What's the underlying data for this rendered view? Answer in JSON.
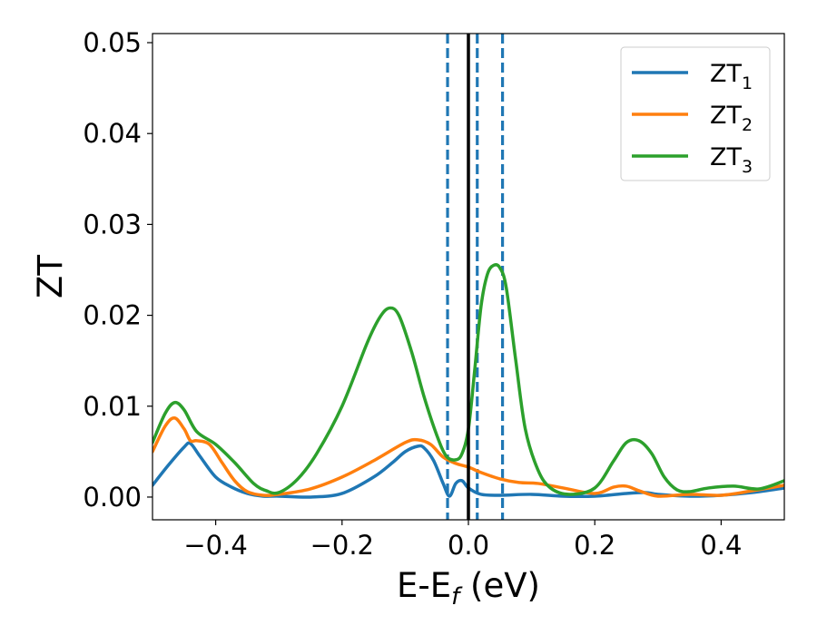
{
  "chart_data": {
    "type": "line",
    "xlabel_main": "E-E",
    "xlabel_sub": "f",
    "xlabel_unit": " (eV)",
    "ylabel": "ZT",
    "xlim": [
      -0.5,
      0.5
    ],
    "ylim": [
      -0.0025,
      0.051
    ],
    "xticks": [
      -0.4,
      -0.2,
      0.0,
      0.2,
      0.4
    ],
    "xtick_labels": [
      "−0.4",
      "−0.2",
      "0.0",
      "0.2",
      "0.4"
    ],
    "yticks": [
      0.0,
      0.01,
      0.02,
      0.03,
      0.04,
      0.05
    ],
    "ytick_labels": [
      "0.00",
      "0.01",
      "0.02",
      "0.03",
      "0.04",
      "0.05"
    ],
    "legend_position": "top-right",
    "grid": false,
    "vlines": [
      {
        "x": -0.033,
        "style": "dashed",
        "color": "#1f77b4"
      },
      {
        "x": 0.0,
        "style": "solid",
        "color": "#000000"
      },
      {
        "x": 0.014,
        "style": "dashed",
        "color": "#1f77b4"
      },
      {
        "x": 0.054,
        "style": "dashed",
        "color": "#1f77b4"
      }
    ],
    "series": [
      {
        "name": "ZT",
        "name_sub": "1",
        "color": "#1f77b4",
        "x": [
          -0.5,
          -0.475,
          -0.45,
          -0.44,
          -0.425,
          -0.4,
          -0.375,
          -0.35,
          -0.325,
          -0.3,
          -0.25,
          -0.2,
          -0.15,
          -0.12,
          -0.1,
          -0.08,
          -0.07,
          -0.055,
          -0.04,
          -0.03,
          -0.02,
          -0.01,
          0.0,
          0.02,
          0.05,
          0.1,
          0.15,
          0.2,
          0.25,
          0.28,
          0.3,
          0.35,
          0.4,
          0.45,
          0.5
        ],
        "y": [
          0.0013,
          0.0035,
          0.0055,
          0.0059,
          0.0045,
          0.0022,
          0.0011,
          0.0004,
          0.0001,
          0.0001,
          0.0,
          0.0004,
          0.0022,
          0.0038,
          0.005,
          0.0056,
          0.0054,
          0.004,
          0.0015,
          0.0001,
          0.0015,
          0.0018,
          0.001,
          0.0003,
          0.0002,
          0.0003,
          0.0001,
          0.0001,
          0.0004,
          0.0005,
          0.0003,
          0.0001,
          0.0002,
          0.0005,
          0.001
        ]
      },
      {
        "name": "ZT",
        "name_sub": "2",
        "color": "#ff7f0e",
        "x": [
          -0.5,
          -0.48,
          -0.465,
          -0.45,
          -0.44,
          -0.43,
          -0.41,
          -0.39,
          -0.37,
          -0.35,
          -0.325,
          -0.3,
          -0.25,
          -0.2,
          -0.15,
          -0.1,
          -0.08,
          -0.06,
          -0.04,
          -0.02,
          0.0,
          0.02,
          0.05,
          0.08,
          0.11,
          0.15,
          0.2,
          0.23,
          0.25,
          0.27,
          0.3,
          0.35,
          0.4,
          0.45,
          0.5
        ],
        "y": [
          0.005,
          0.0078,
          0.0087,
          0.0075,
          0.0062,
          0.0062,
          0.0058,
          0.0038,
          0.0018,
          0.0006,
          0.0002,
          0.0003,
          0.0009,
          0.0022,
          0.004,
          0.006,
          0.0063,
          0.0058,
          0.0044,
          0.0037,
          0.0033,
          0.0027,
          0.002,
          0.0016,
          0.0015,
          0.001,
          0.0004,
          0.0011,
          0.0012,
          0.0007,
          0.0001,
          0.0003,
          0.0002,
          0.0007,
          0.0013
        ]
      },
      {
        "name": "ZT",
        "name_sub": "3",
        "color": "#2ca02c",
        "x": [
          -0.5,
          -0.48,
          -0.465,
          -0.45,
          -0.43,
          -0.4,
          -0.37,
          -0.34,
          -0.32,
          -0.3,
          -0.27,
          -0.24,
          -0.2,
          -0.16,
          -0.14,
          -0.125,
          -0.11,
          -0.09,
          -0.07,
          -0.05,
          -0.035,
          -0.02,
          -0.01,
          0.0,
          0.01,
          0.02,
          0.03,
          0.04,
          0.05,
          0.06,
          0.075,
          0.09,
          0.11,
          0.13,
          0.16,
          0.2,
          0.23,
          0.25,
          0.27,
          0.29,
          0.31,
          0.33,
          0.35,
          0.38,
          0.42,
          0.46,
          0.5
        ],
        "y": [
          0.006,
          0.0092,
          0.0104,
          0.0096,
          0.0072,
          0.0058,
          0.0038,
          0.0015,
          0.0007,
          0.0005,
          0.002,
          0.0048,
          0.01,
          0.017,
          0.0198,
          0.0208,
          0.02,
          0.016,
          0.011,
          0.0068,
          0.0045,
          0.0041,
          0.0048,
          0.0075,
          0.014,
          0.021,
          0.0245,
          0.0255,
          0.0252,
          0.023,
          0.015,
          0.0075,
          0.003,
          0.001,
          0.0003,
          0.001,
          0.004,
          0.006,
          0.0062,
          0.0048,
          0.0022,
          0.0008,
          0.0006,
          0.001,
          0.0012,
          0.0009,
          0.0018
        ]
      }
    ]
  }
}
